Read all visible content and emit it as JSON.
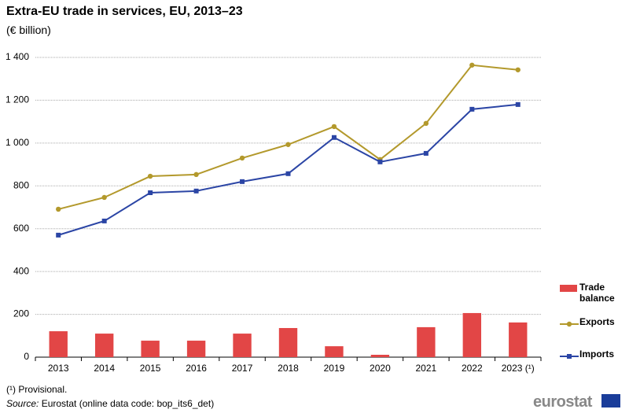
{
  "chart_data": {
    "type": "combo",
    "title": "Extra-EU trade in services, EU, 2013–23",
    "subtitle": "(€ billion)",
    "categories": [
      "2013",
      "2014",
      "2015",
      "2016",
      "2017",
      "2018",
      "2019",
      "2020",
      "2021",
      "2022",
      "2023 (¹)"
    ],
    "series": [
      {
        "name": "Trade balance",
        "mark": "bar",
        "color": "#e24646",
        "values": [
          121,
          110,
          77,
          77,
          110,
          136,
          51,
          11,
          140,
          206,
          162
        ]
      },
      {
        "name": "Exports",
        "mark": "line",
        "marker": "circle",
        "color": "#b3992c",
        "values": [
          691,
          746,
          845,
          853,
          930,
          993,
          1077,
          923,
          1092,
          1364,
          1342
        ]
      },
      {
        "name": "Imports",
        "mark": "line",
        "marker": "square",
        "color": "#2b45a5",
        "values": [
          570,
          636,
          768,
          776,
          820,
          857,
          1026,
          912,
          952,
          1158,
          1180
        ]
      }
    ],
    "ylim": [
      0,
      1400
    ],
    "yticks": [
      0,
      200,
      400,
      600,
      800,
      {
        "value": 1000,
        "label": "1 000"
      },
      {
        "value": 1200,
        "label": "1 200"
      },
      {
        "value": 1400,
        "label": "1 400"
      }
    ],
    "grid": true,
    "legend": "right",
    "footnote": "(¹) Provisional.",
    "source_label": "Source:",
    "source_text": "Eurostat (online data code: bop_its6_det)",
    "logo": "eurostat"
  }
}
